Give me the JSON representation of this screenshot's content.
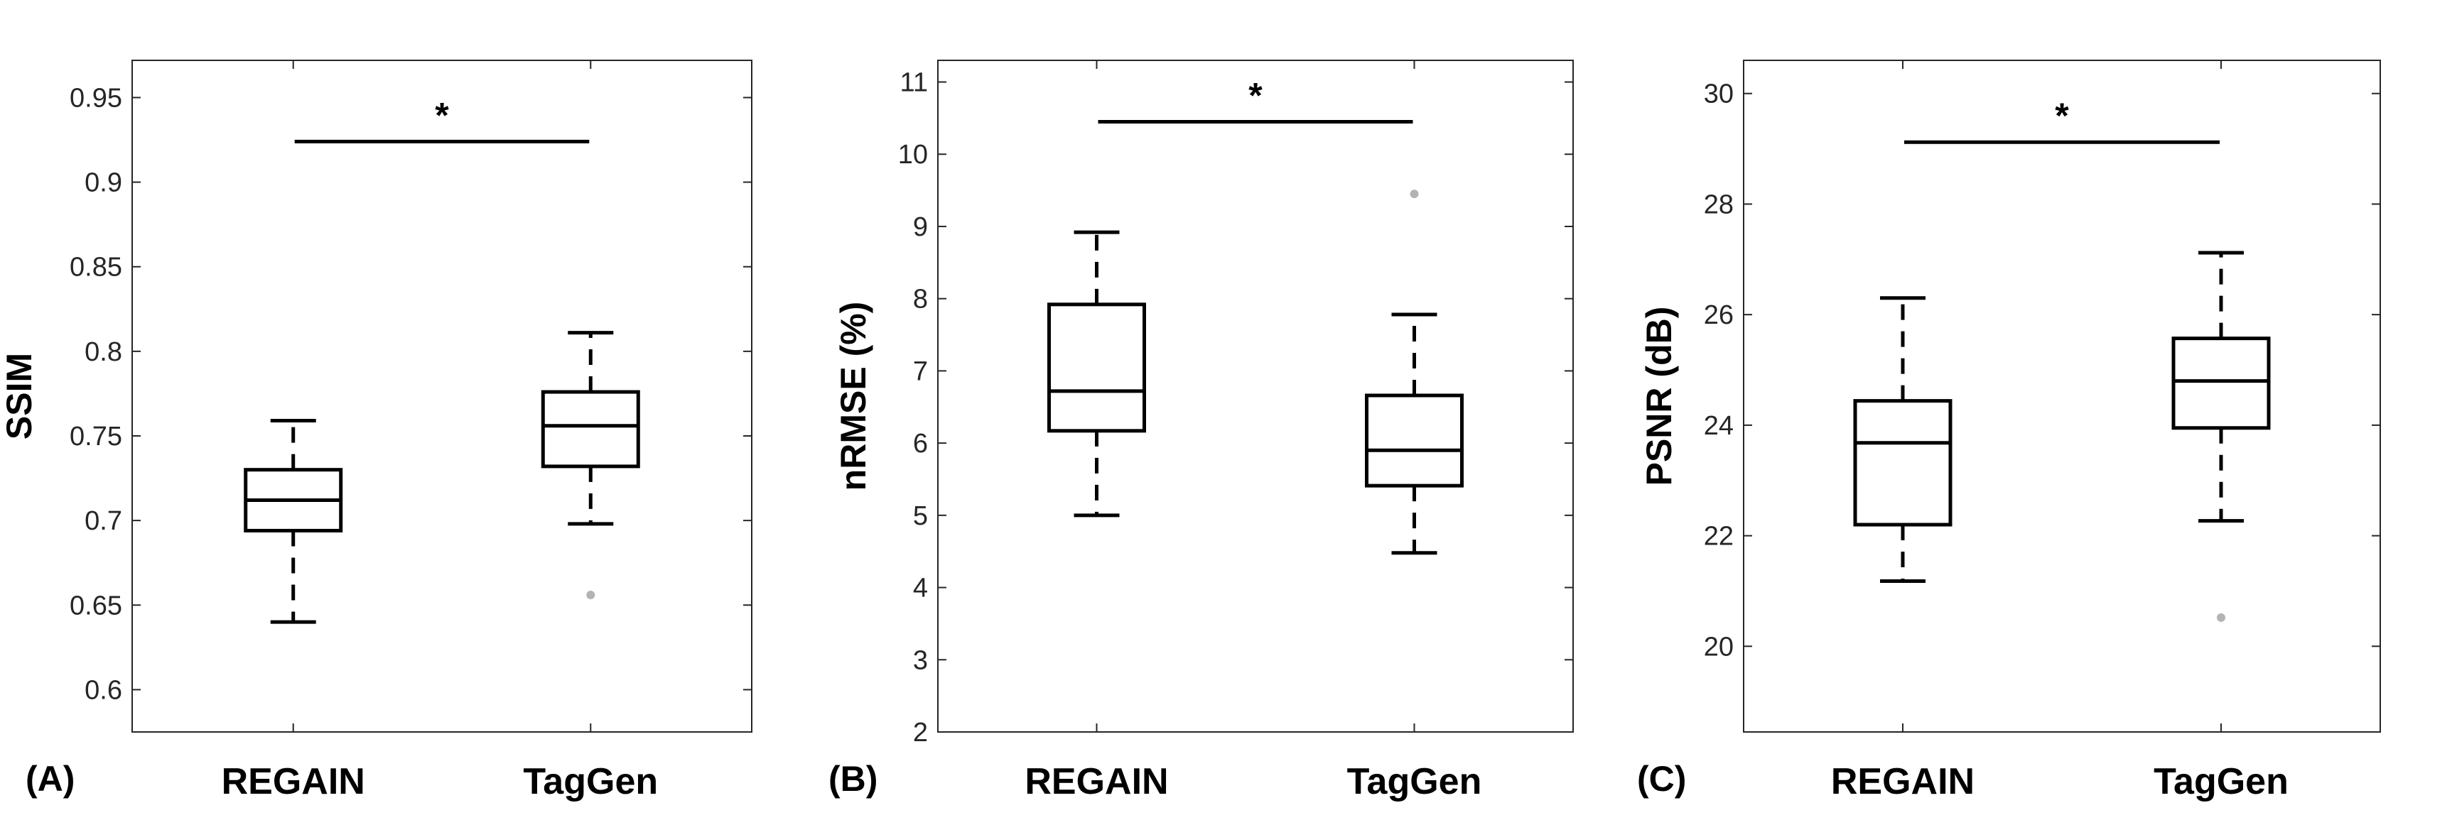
{
  "chart_data": [
    {
      "type": "box",
      "panel_label": "(A)",
      "ylabel": "SSIM",
      "categories": [
        "REGAIN",
        "TagGen"
      ],
      "ylim": [
        0.575,
        0.972
      ],
      "yticks": [
        0.6,
        0.65,
        0.7,
        0.75,
        0.8,
        0.85,
        0.9,
        0.95
      ],
      "ytick_labels": [
        "0.6",
        "0.65",
        "0.7",
        "0.75",
        "0.8",
        "0.85",
        "0.9",
        "0.95"
      ],
      "boxes": [
        {
          "category": "REGAIN",
          "whisker_low": 0.64,
          "q1": 0.694,
          "median": 0.712,
          "q3": 0.73,
          "whisker_high": 0.759,
          "outliers": []
        },
        {
          "category": "TagGen",
          "whisker_low": 0.698,
          "q1": 0.732,
          "median": 0.756,
          "q3": 0.776,
          "whisker_high": 0.811,
          "outliers": [
            0.656
          ]
        }
      ],
      "significance": {
        "y": 0.924,
        "label": "*"
      },
      "grid": false
    },
    {
      "type": "box",
      "panel_label": "(B)",
      "ylabel": "nRMSE (%)",
      "categories": [
        "REGAIN",
        "TagGen"
      ],
      "ylim": [
        2,
        11.3
      ],
      "yticks": [
        2,
        3,
        4,
        5,
        6,
        7,
        8,
        9,
        10,
        11
      ],
      "ytick_labels": [
        "2",
        "3",
        "4",
        "5",
        "6",
        "7",
        "8",
        "9",
        "10",
        "11"
      ],
      "boxes": [
        {
          "category": "REGAIN",
          "whisker_low": 5.0,
          "q1": 6.17,
          "median": 6.72,
          "q3": 7.92,
          "whisker_high": 8.92,
          "outliers": []
        },
        {
          "category": "TagGen",
          "whisker_low": 4.48,
          "q1": 5.41,
          "median": 5.9,
          "q3": 6.66,
          "whisker_high": 7.78,
          "outliers": [
            9.45
          ]
        }
      ],
      "significance": {
        "y": 10.45,
        "label": "*"
      },
      "grid": false
    },
    {
      "type": "box",
      "panel_label": "(C)",
      "ylabel": "PSNR (dB)",
      "categories": [
        "REGAIN",
        "TagGen"
      ],
      "ylim": [
        18.45,
        30.6
      ],
      "yticks": [
        20,
        22,
        24,
        26,
        28,
        30
      ],
      "ytick_labels": [
        "20",
        "22",
        "24",
        "26",
        "28",
        "30"
      ],
      "boxes": [
        {
          "category": "REGAIN",
          "whisker_low": 21.18,
          "q1": 22.2,
          "median": 23.68,
          "q3": 24.44,
          "whisker_high": 26.3,
          "outliers": []
        },
        {
          "category": "TagGen",
          "whisker_low": 22.27,
          "q1": 23.95,
          "median": 24.8,
          "q3": 25.57,
          "whisker_high": 27.12,
          "outliers": [
            20.52
          ]
        }
      ],
      "significance": {
        "y": 29.12,
        "label": "*"
      },
      "grid": false
    }
  ]
}
